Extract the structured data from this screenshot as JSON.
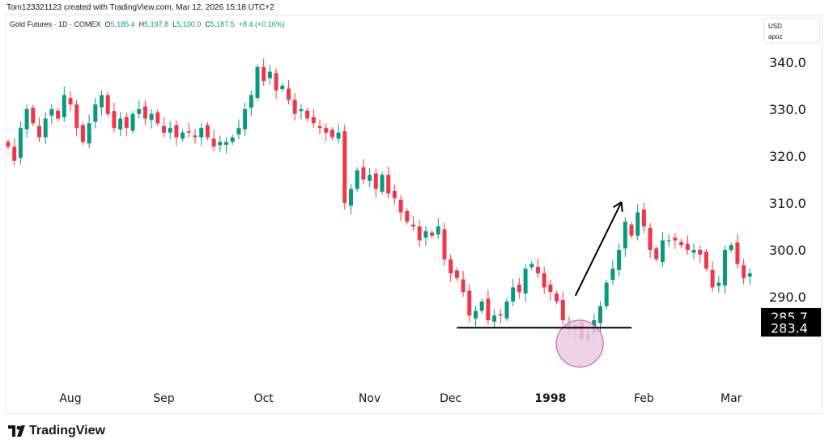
{
  "credit": "Tom123321123 created with TradingView.com, Mar 12, 2026 15:18 UTC+2",
  "legend": {
    "symbol": "Gold Futures · 1D · COMEX",
    "o_label": "O",
    "o": "5,185.4",
    "h_label": "H",
    "h": "5,197.8",
    "l_label": "L",
    "l": "5,130.0",
    "c_label": "C",
    "c": "5,187.5",
    "change": "+8.4 (+0.16%)"
  },
  "currency": {
    "code": "USD",
    "sub": "apoz"
  },
  "logo_text": "TradingView",
  "colors": {
    "up": "#089981",
    "down": "#f23645",
    "circle_fill": "#ecc9e4",
    "circle_stroke": "#c94fa5"
  },
  "chart_data": {
    "type": "candlestick",
    "ylim": [
      273,
      347
    ],
    "y_ticks": [
      "340.0",
      "330.0",
      "320.0",
      "310.0",
      "300.0",
      "290.0"
    ],
    "y_tick_values": [
      340,
      330,
      320,
      310,
      300,
      290
    ],
    "x_ticks": [
      {
        "label": "Aug",
        "index": 10
      },
      {
        "label": "Sep",
        "index": 25
      },
      {
        "label": "Oct",
        "index": 41
      },
      {
        "label": "Nov",
        "index": 58
      },
      {
        "label": "Dec",
        "index": 71
      },
      {
        "label": "1998",
        "index": 87,
        "bold": true
      },
      {
        "label": "Feb",
        "index": 102
      },
      {
        "label": "Mar",
        "index": 116
      }
    ],
    "price_labels": [
      "285.7",
      "283.4"
    ],
    "close": [
      322,
      319,
      326,
      330,
      327,
      324,
      328,
      330,
      328,
      333,
      331,
      326,
      323,
      327,
      331,
      333,
      329,
      326,
      328,
      326,
      329,
      330,
      328,
      329,
      327,
      325,
      326,
      324,
      325,
      325,
      324,
      326,
      324,
      322,
      323,
      323,
      324,
      326,
      330,
      333,
      339,
      336,
      338,
      334,
      335,
      332,
      329,
      330,
      328,
      327,
      326,
      325,
      324,
      325,
      310,
      313,
      317,
      315,
      316,
      313,
      316,
      312,
      311,
      308,
      306,
      305,
      302,
      304,
      303,
      305,
      298,
      295,
      294,
      291,
      286,
      287,
      289,
      285,
      286,
      286,
      289,
      292,
      291,
      296,
      297,
      295,
      292,
      291,
      289,
      285,
      283,
      284,
      281,
      282,
      285,
      288,
      293,
      296,
      300,
      306,
      303,
      308,
      305,
      300,
      298,
      302,
      302,
      302,
      301,
      300,
      300,
      299,
      296,
      292,
      293,
      300,
      301,
      297,
      294,
      295
    ],
    "annotations": {
      "support_line": {
        "price": 283.4,
        "from_index": 72,
        "to_index": 100
      },
      "arrow": {
        "from": {
          "index": 91,
          "price": 290.2
        },
        "to": {
          "index": 98.4,
          "price": 310.2
        }
      },
      "circle": {
        "index": 91.7,
        "price": 280
      }
    }
  }
}
